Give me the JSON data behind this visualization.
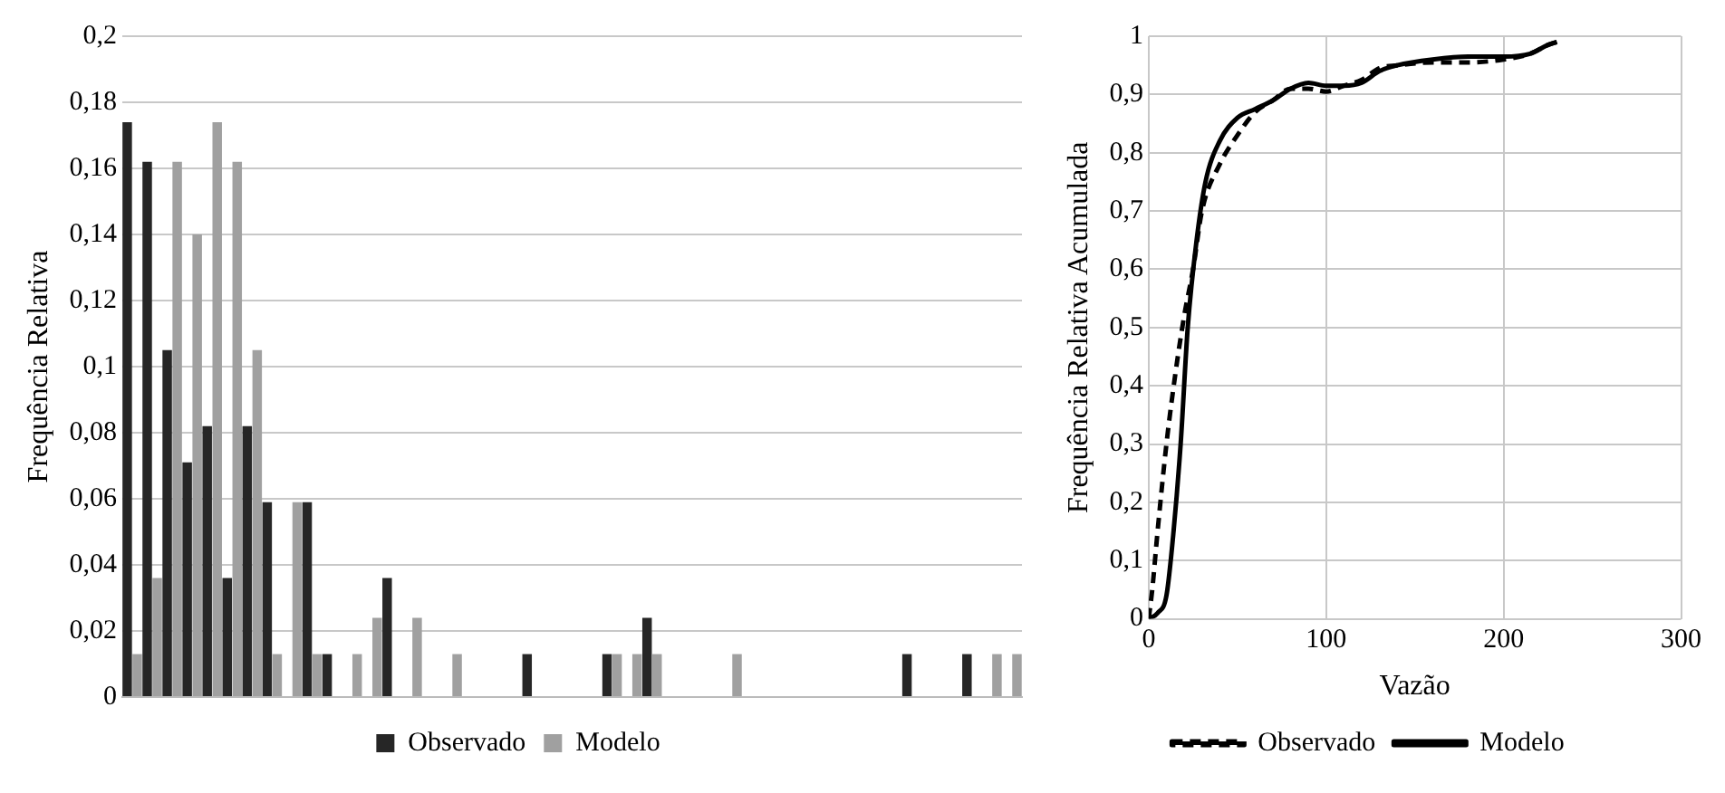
{
  "chart_data": [
    {
      "type": "bar",
      "ylabel": "Frequência Relativa",
      "categories": [
        null,
        null,
        null,
        null,
        null,
        null,
        null,
        null,
        null,
        null,
        null,
        null,
        null,
        null,
        null,
        null,
        null,
        null,
        null,
        null,
        null,
        null,
        null,
        null,
        null,
        null,
        null,
        null,
        null,
        null,
        null,
        null,
        null,
        null,
        null,
        null,
        null,
        null,
        null,
        null,
        null,
        null,
        null,
        null,
        null
      ],
      "series": [
        {
          "name": "Observado",
          "color": "#262626",
          "values": [
            0.174,
            0.162,
            0.105,
            0.071,
            0.082,
            0.036,
            0.082,
            0.059,
            0,
            0.059,
            0.013,
            0,
            0,
            0.036,
            0,
            0,
            0,
            0,
            0,
            0,
            0.013,
            0,
            0,
            0,
            0.013,
            0,
            0.024,
            0,
            0,
            0,
            0,
            0,
            0,
            0,
            0,
            0,
            0,
            0,
            0,
            0.013,
            0,
            0,
            0.013,
            0,
            0
          ]
        },
        {
          "name": "Modelo",
          "color": "#a0a0a0",
          "values": [
            0.013,
            0.036,
            0.162,
            0.14,
            0.174,
            0.162,
            0.105,
            0.013,
            0.059,
            0.013,
            0,
            0.013,
            0.024,
            0,
            0.024,
            0,
            0.013,
            0,
            0,
            0,
            0,
            0,
            0,
            0,
            0.013,
            0.013,
            0.013,
            0,
            0,
            0,
            0.013,
            0,
            0,
            0,
            0,
            0,
            0,
            0,
            0,
            0,
            0,
            0,
            0,
            0.013,
            0.013
          ]
        }
      ],
      "ylim": [
        0,
        0.2
      ],
      "yticks": [
        {
          "value": 0,
          "label": "0"
        },
        {
          "value": 0.02,
          "label": "0,02"
        },
        {
          "value": 0.04,
          "label": "0,04"
        },
        {
          "value": 0.06,
          "label": "0,06"
        },
        {
          "value": 0.08,
          "label": "0,08"
        },
        {
          "value": 0.1,
          "label": "0,1"
        },
        {
          "value": 0.12,
          "label": "0,12"
        },
        {
          "value": 0.14,
          "label": "0,14"
        },
        {
          "value": 0.16,
          "label": "0,16"
        },
        {
          "value": 0.18,
          "label": "0,18"
        },
        {
          "value": 0.2,
          "label": "0,2"
        }
      ],
      "grid": "y",
      "legend": "bottom"
    },
    {
      "type": "line",
      "xlabel": "Vazão",
      "ylabel": "Frequência Relativa Acumulada",
      "series": [
        {
          "name": "Observado",
          "color": "#000000",
          "line_style": "dashed",
          "x": [
            0,
            2,
            5,
            10,
            15,
            20,
            25,
            30,
            40,
            50,
            60,
            70,
            80,
            90,
            100,
            110,
            120,
            130,
            140,
            160,
            180,
            200,
            215,
            225,
            230
          ],
          "values": [
            0,
            0.05,
            0.15,
            0.3,
            0.42,
            0.52,
            0.6,
            0.7,
            0.78,
            0.83,
            0.87,
            0.89,
            0.91,
            0.91,
            0.905,
            0.915,
            0.925,
            0.945,
            0.95,
            0.955,
            0.955,
            0.96,
            0.97,
            0.985,
            0.99
          ]
        },
        {
          "name": "Modelo",
          "color": "#000000",
          "line_style": "solid",
          "x": [
            0,
            5,
            10,
            14,
            18,
            22,
            27,
            32,
            40,
            50,
            60,
            70,
            80,
            90,
            100,
            110,
            120,
            130,
            140,
            160,
            180,
            200,
            215,
            225,
            230
          ],
          "values": [
            0,
            0.01,
            0.04,
            0.15,
            0.3,
            0.5,
            0.65,
            0.75,
            0.82,
            0.86,
            0.875,
            0.89,
            0.91,
            0.92,
            0.915,
            0.915,
            0.92,
            0.94,
            0.95,
            0.96,
            0.965,
            0.965,
            0.97,
            0.985,
            0.99
          ]
        }
      ],
      "xlim": [
        0,
        300
      ],
      "xticks": [
        0,
        100,
        200,
        300
      ],
      "ylim": [
        0,
        1
      ],
      "yticks": [
        {
          "value": 0,
          "label": "0"
        },
        {
          "value": 0.1,
          "label": "0,1"
        },
        {
          "value": 0.2,
          "label": "0,2"
        },
        {
          "value": 0.3,
          "label": "0,3"
        },
        {
          "value": 0.4,
          "label": "0,4"
        },
        {
          "value": 0.5,
          "label": "0,5"
        },
        {
          "value": 0.6,
          "label": "0,6"
        },
        {
          "value": 0.7,
          "label": "0,7"
        },
        {
          "value": 0.8,
          "label": "0,8"
        },
        {
          "value": 0.9,
          "label": "0,9"
        },
        {
          "value": 1,
          "label": "1"
        }
      ],
      "grid": true,
      "legend": "bottom"
    }
  ]
}
